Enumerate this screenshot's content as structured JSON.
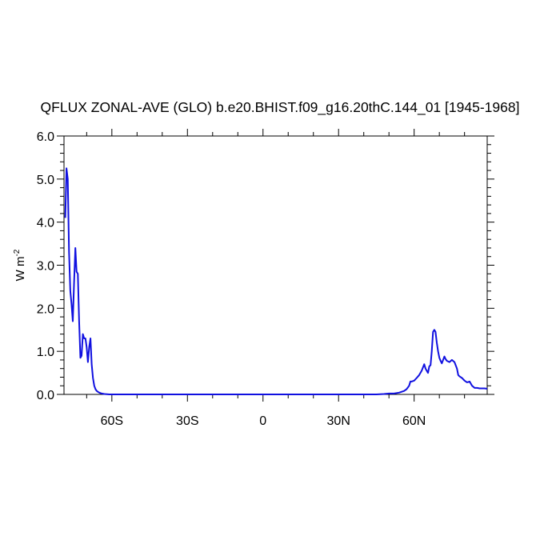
{
  "chart_data": {
    "type": "line",
    "title": "QFLUX ZONAL-AVE (GLO) b.e20.BHIST.f09_g16.20thC.144_01 [1945-1968]",
    "xlabel": "",
    "ylabel": "W m",
    "ylabel_superscript": "-2",
    "xlim": [
      -79,
      89
    ],
    "ylim": [
      0,
      6
    ],
    "x_ticks": [
      -60,
      -30,
      0,
      30,
      60
    ],
    "x_tick_labels": [
      "60S",
      "30S",
      "0",
      "30N",
      "60N"
    ],
    "y_ticks": [
      0,
      1,
      2,
      3,
      4,
      5,
      6
    ],
    "y_tick_labels": [
      "0.0",
      "1.0",
      "2.0",
      "3.0",
      "4.0",
      "5.0",
      "6.0"
    ],
    "grid": false,
    "series": [
      {
        "color": "#1010e0",
        "x": [
          -78.5,
          -78,
          -77.5,
          -77,
          -76.5,
          -76,
          -75.5,
          -75,
          -74.5,
          -74,
          -73.5,
          -73,
          -72.5,
          -72,
          -71.5,
          -71,
          -70.5,
          -70,
          -69.5,
          -69,
          -68.5,
          -68,
          -67.5,
          -67,
          -66.5,
          -66,
          -65.5,
          -65,
          -64,
          -63,
          -62,
          -61,
          -60,
          -58,
          -55,
          -50,
          -40,
          -30,
          -20,
          -10,
          0,
          10,
          20,
          30,
          40,
          45,
          48,
          50,
          52,
          54,
          56,
          57,
          58,
          58.5,
          59,
          60,
          61,
          62,
          63,
          64,
          64.5,
          65,
          65.5,
          66,
          66.5,
          67,
          67.5,
          68,
          68.5,
          69,
          69.5,
          70,
          70.5,
          71,
          72,
          72.5,
          73,
          74,
          75,
          76,
          77,
          77.5,
          78,
          79,
          80,
          81,
          82,
          83,
          84,
          85,
          86,
          87,
          88,
          89
        ],
        "y": [
          4.1,
          5.25,
          5.0,
          3.3,
          2.4,
          2.1,
          1.7,
          2.6,
          3.4,
          2.85,
          2.8,
          1.7,
          0.85,
          0.9,
          1.4,
          1.3,
          1.3,
          1.1,
          0.75,
          1.1,
          1.3,
          0.7,
          0.38,
          0.2,
          0.12,
          0.08,
          0.06,
          0.04,
          0.02,
          0.01,
          0.005,
          0.0,
          0.0,
          0.0,
          0.0,
          0.0,
          0.0,
          0.0,
          0.0,
          0.0,
          0.0,
          0.0,
          0.0,
          0.0,
          0.0,
          0.0,
          0.01,
          0.02,
          0.02,
          0.04,
          0.08,
          0.12,
          0.2,
          0.3,
          0.3,
          0.32,
          0.38,
          0.45,
          0.55,
          0.7,
          0.6,
          0.55,
          0.5,
          0.65,
          0.68,
          1.0,
          1.45,
          1.5,
          1.45,
          1.2,
          1.0,
          0.85,
          0.78,
          0.72,
          0.88,
          0.82,
          0.78,
          0.75,
          0.8,
          0.75,
          0.6,
          0.45,
          0.42,
          0.38,
          0.32,
          0.28,
          0.3,
          0.2,
          0.15,
          0.15,
          0.14,
          0.14,
          0.14,
          0.13
        ]
      }
    ]
  }
}
